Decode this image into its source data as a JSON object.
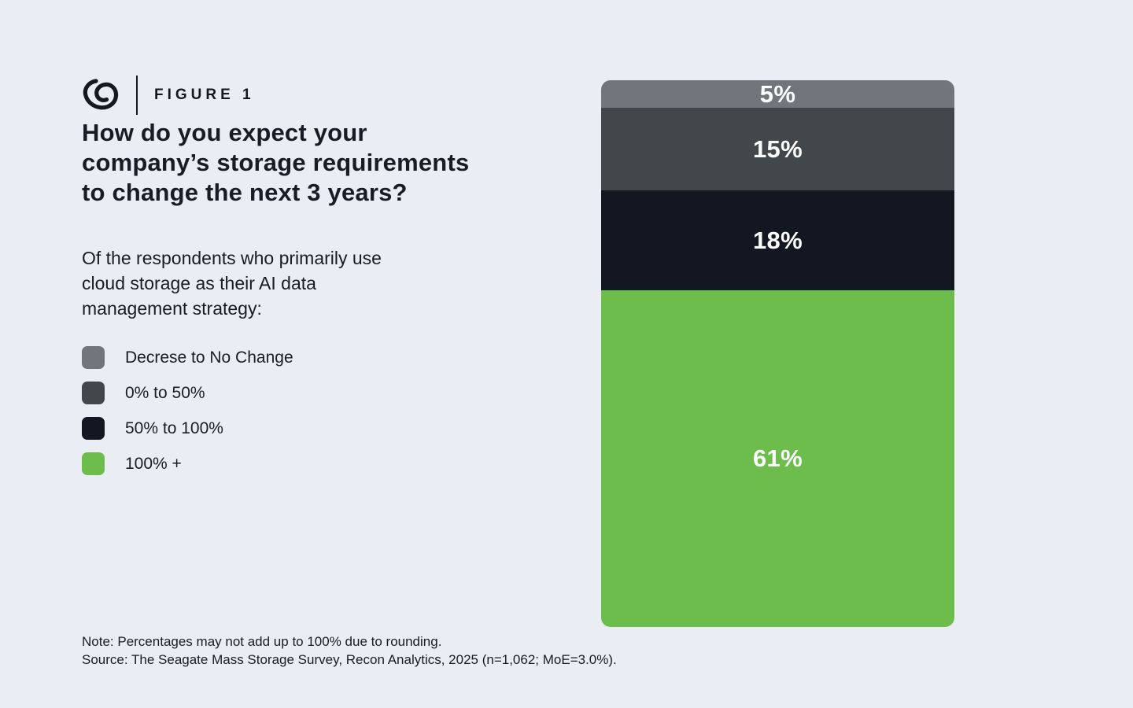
{
  "page": {
    "background": "#eaedf4",
    "text_color": "#171c26"
  },
  "header": {
    "logo_icon": "seagate-swirl-icon",
    "figure_label": "FIGURE 1"
  },
  "title": "How do you expect your\ncompany’s storage requirements\nto change the next 3 years?",
  "subtitle": "Of the respondents who primarily use\ncloud storage as their AI data\nmanagement strategy:",
  "legend": {
    "items": [
      {
        "label": "Decrese to No Change",
        "color": "#70767c"
      },
      {
        "label": "0% to 50%",
        "color": "#42474c"
      },
      {
        "label": "50% to 100%",
        "color": "#121722"
      },
      {
        "label": "100% +",
        "color": "#6cbd4c"
      }
    ]
  },
  "chart_data": {
    "type": "bar",
    "variant": "single-stacked-column",
    "orientation": "vertical",
    "categories": [
      "Decrese to No Change",
      "0% to 50%",
      "50% to 100%",
      "100% +"
    ],
    "values": [
      5,
      15,
      18,
      61
    ],
    "value_labels": [
      "5%",
      "15%",
      "18%",
      "61%"
    ],
    "colors": [
      "#70767c",
      "#42474c",
      "#121722",
      "#6cbd4c"
    ],
    "unit": "%",
    "legend_position": "left",
    "value_label_color": "#ffffff",
    "title": "How do you expect your company’s storage requirements to change the next 3 years?"
  },
  "footnotes": {
    "note": "Note: Percentages may not add up to 100% due to rounding.",
    "source": "Source: The Seagate Mass Storage Survey, Recon Analytics, 2025 (n=1,062; MoE=3.0%)."
  }
}
